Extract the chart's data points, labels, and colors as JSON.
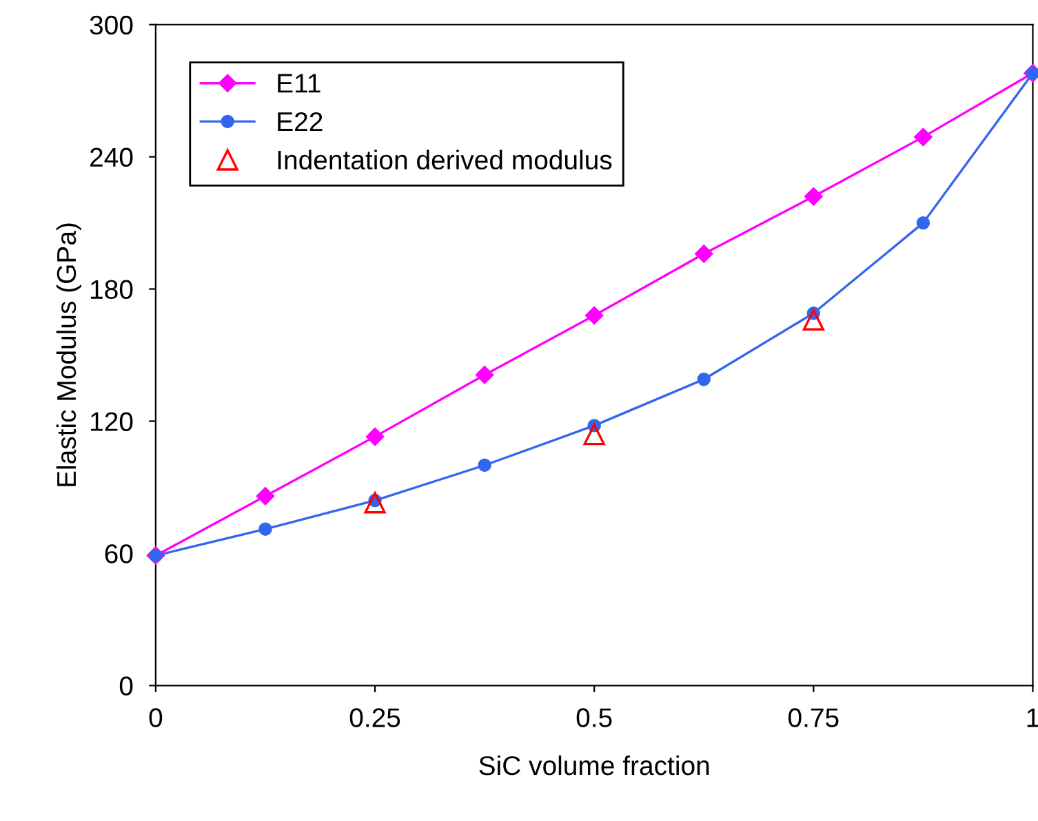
{
  "chart_data": {
    "type": "line",
    "xlabel": "SiC volume fraction",
    "ylabel": "Elastic Modulus (GPa)",
    "xlim": [
      0,
      1
    ],
    "xticks": [
      0,
      0.25,
      0.5,
      0.75,
      1
    ],
    "ylim": [
      0,
      300
    ],
    "yticks": [
      0,
      60,
      120,
      180,
      240,
      300
    ],
    "grid": false,
    "legend": "top left",
    "series": [
      {
        "name": "E11",
        "color": "#ff00ff",
        "marker": "diamond",
        "x": [
          0,
          0.125,
          0.25,
          0.375,
          0.5,
          0.625,
          0.75,
          0.875,
          1
        ],
        "values": [
          59,
          86,
          113,
          141,
          168,
          196,
          222,
          249,
          278
        ]
      },
      {
        "name": "E22",
        "color": "#3366ee",
        "marker": "circle",
        "x": [
          0,
          0.125,
          0.25,
          0.375,
          0.5,
          0.625,
          0.75,
          0.875,
          1
        ],
        "values": [
          59,
          71,
          84,
          100,
          118,
          139,
          169,
          210,
          278
        ]
      },
      {
        "name": "Indentation derived modulus",
        "type": "scatter",
        "color": "#ff0000",
        "marker": "triangle",
        "x": [
          0.25,
          0.5,
          0.75
        ],
        "values": [
          83,
          114,
          166
        ]
      }
    ]
  }
}
